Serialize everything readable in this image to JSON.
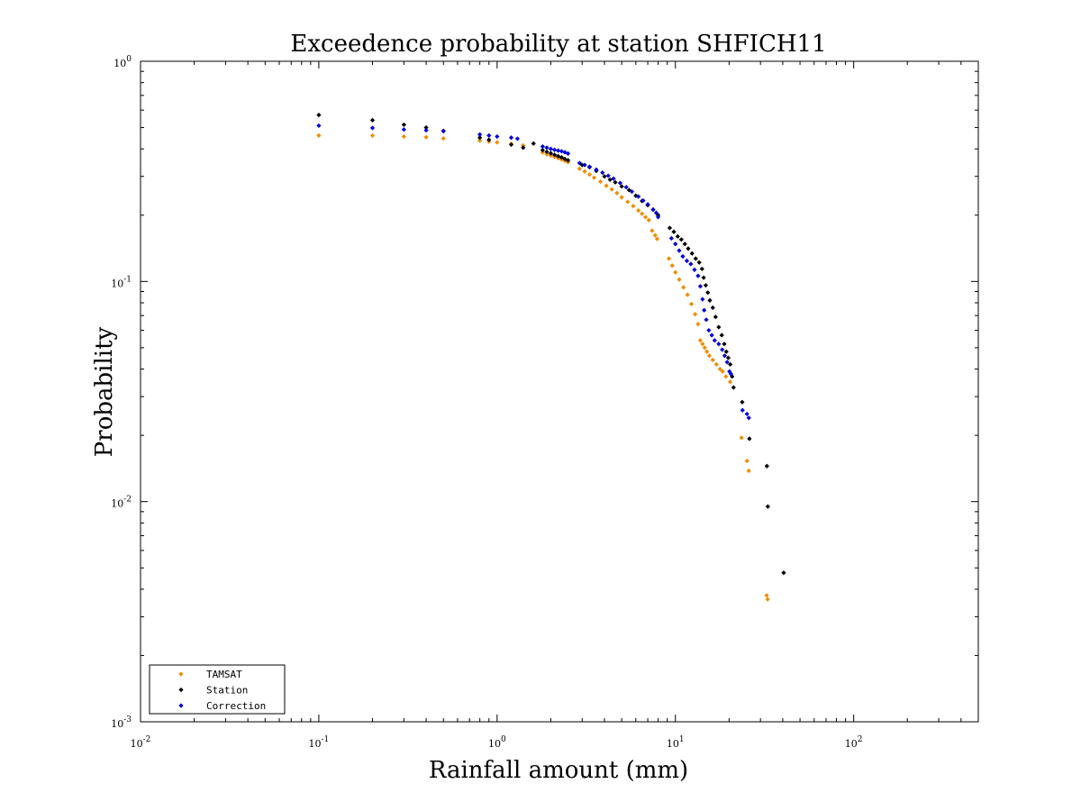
{
  "chart_data": {
    "type": "scatter",
    "title": "Exceedence probability at station SHFICH11",
    "xlabel": "Rainfall amount (mm)",
    "ylabel": "Probability",
    "x_scale": "log",
    "y_scale": "log",
    "xlim": [
      0.01,
      500
    ],
    "ylim": [
      0.001,
      1
    ],
    "x_tick_labels": [
      {
        "value": 0.01,
        "base": "10",
        "exp": "-2"
      },
      {
        "value": 0.1,
        "base": "10",
        "exp": "-1"
      },
      {
        "value": 1,
        "base": "10",
        "exp": "0"
      },
      {
        "value": 10,
        "base": "10",
        "exp": "1"
      },
      {
        "value": 100,
        "base": "10",
        "exp": "2"
      }
    ],
    "y_tick_labels": [
      {
        "value": 1,
        "base": "10",
        "exp": "0"
      },
      {
        "value": 0.1,
        "base": "10",
        "exp": "-1"
      },
      {
        "value": 0.01,
        "base": "10",
        "exp": "-2"
      },
      {
        "value": 0.001,
        "base": "10",
        "exp": "-3"
      }
    ],
    "grid": false,
    "legend_position": "bottom-left",
    "series": [
      {
        "name": "TAMSAT",
        "color": "#f08c00",
        "marker": "diamond",
        "points": [
          [
            0.1,
            0.46
          ],
          [
            0.2,
            0.46
          ],
          [
            0.3,
            0.455
          ],
          [
            0.4,
            0.452
          ],
          [
            0.5,
            0.446
          ],
          [
            0.8,
            0.436
          ],
          [
            0.9,
            0.432
          ],
          [
            1.0,
            0.428
          ],
          [
            1.2,
            0.422
          ],
          [
            1.4,
            0.415
          ],
          [
            1.8,
            0.385
          ],
          [
            1.9,
            0.378
          ],
          [
            2.0,
            0.373
          ],
          [
            2.1,
            0.368
          ],
          [
            2.2,
            0.363
          ],
          [
            2.3,
            0.358
          ],
          [
            2.4,
            0.353
          ],
          [
            2.5,
            0.348
          ],
          [
            2.9,
            0.325
          ],
          [
            3.1,
            0.316
          ],
          [
            3.3,
            0.306
          ],
          [
            3.5,
            0.296
          ],
          [
            3.8,
            0.284
          ],
          [
            4.1,
            0.272
          ],
          [
            4.4,
            0.262
          ],
          [
            4.7,
            0.252
          ],
          [
            5.0,
            0.241
          ],
          [
            5.4,
            0.23
          ],
          [
            5.8,
            0.22
          ],
          [
            6.2,
            0.21
          ],
          [
            6.5,
            0.203
          ],
          [
            6.8,
            0.196
          ],
          [
            7.1,
            0.19
          ],
          [
            7.4,
            0.17
          ],
          [
            7.7,
            0.162
          ],
          [
            7.9,
            0.156
          ],
          [
            9.2,
            0.127
          ],
          [
            9.6,
            0.118
          ],
          [
            10.0,
            0.11
          ],
          [
            10.5,
            0.102
          ],
          [
            11.1,
            0.094
          ],
          [
            11.7,
            0.087
          ],
          [
            12.3,
            0.079
          ],
          [
            12.9,
            0.071
          ],
          [
            13.4,
            0.064
          ],
          [
            13.8,
            0.054
          ],
          [
            14.2,
            0.052
          ],
          [
            14.6,
            0.05
          ],
          [
            15.0,
            0.048
          ],
          [
            15.5,
            0.046
          ],
          [
            16.2,
            0.044
          ],
          [
            17.0,
            0.042
          ],
          [
            17.8,
            0.04
          ],
          [
            18.4,
            0.039
          ],
          [
            19.2,
            0.037
          ],
          [
            20.3,
            0.035
          ],
          [
            23.5,
            0.0195
          ],
          [
            25.2,
            0.0153
          ],
          [
            25.8,
            0.0138
          ],
          [
            32.5,
            0.00375
          ],
          [
            32.9,
            0.0036
          ]
        ]
      },
      {
        "name": "Station",
        "color": "#000000",
        "marker": "diamond",
        "points": [
          [
            0.1,
            0.57
          ],
          [
            0.2,
            0.54
          ],
          [
            0.3,
            0.515
          ],
          [
            0.4,
            0.5
          ],
          [
            0.5,
            0.483
          ],
          [
            0.8,
            0.45
          ],
          [
            0.9,
            0.44
          ],
          [
            1.2,
            0.418
          ],
          [
            1.4,
            0.405
          ],
          [
            1.6,
            0.423
          ],
          [
            1.8,
            0.395
          ],
          [
            1.9,
            0.388
          ],
          [
            2.0,
            0.382
          ],
          [
            2.1,
            0.376
          ],
          [
            2.2,
            0.371
          ],
          [
            2.3,
            0.366
          ],
          [
            2.4,
            0.36
          ],
          [
            2.5,
            0.355
          ],
          [
            3.0,
            0.338
          ],
          [
            3.3,
            0.33
          ],
          [
            3.6,
            0.318
          ],
          [
            4.0,
            0.3
          ],
          [
            4.3,
            0.29
          ],
          [
            4.6,
            0.282
          ],
          [
            5.0,
            0.27
          ],
          [
            5.5,
            0.26
          ],
          [
            6.0,
            0.245
          ],
          [
            6.5,
            0.232
          ],
          [
            7.0,
            0.222
          ],
          [
            7.5,
            0.212
          ],
          [
            8.0,
            0.2
          ],
          [
            9.3,
            0.175
          ],
          [
            9.8,
            0.168
          ],
          [
            10.3,
            0.16
          ],
          [
            10.8,
            0.155
          ],
          [
            11.3,
            0.148
          ],
          [
            11.8,
            0.141
          ],
          [
            12.4,
            0.134
          ],
          [
            13.0,
            0.127
          ],
          [
            13.6,
            0.122
          ],
          [
            14.1,
            0.114
          ],
          [
            14.4,
            0.104
          ],
          [
            14.8,
            0.096
          ],
          [
            15.2,
            0.089
          ],
          [
            15.6,
            0.082
          ],
          [
            16.2,
            0.076
          ],
          [
            16.8,
            0.069
          ],
          [
            17.5,
            0.062
          ],
          [
            18.2,
            0.057
          ],
          [
            18.8,
            0.052
          ],
          [
            19.3,
            0.048
          ],
          [
            19.8,
            0.045
          ],
          [
            20.3,
            0.042
          ],
          [
            20.8,
            0.037
          ],
          [
            21.2,
            0.033
          ],
          [
            23.7,
            0.0283
          ],
          [
            26.0,
            0.0193
          ],
          [
            32.6,
            0.0145
          ],
          [
            33.0,
            0.0095
          ],
          [
            40.5,
            0.00475
          ]
        ]
      },
      {
        "name": "Correction",
        "color": "#0000d8",
        "marker": "diamond",
        "points": [
          [
            0.1,
            0.51
          ],
          [
            0.2,
            0.498
          ],
          [
            0.3,
            0.49
          ],
          [
            0.4,
            0.486
          ],
          [
            0.5,
            0.481
          ],
          [
            0.8,
            0.465
          ],
          [
            0.9,
            0.46
          ],
          [
            1.0,
            0.455
          ],
          [
            1.2,
            0.45
          ],
          [
            1.3,
            0.445
          ],
          [
            1.8,
            0.41
          ],
          [
            1.9,
            0.405
          ],
          [
            2.0,
            0.4
          ],
          [
            2.1,
            0.396
          ],
          [
            2.2,
            0.393
          ],
          [
            2.3,
            0.39
          ],
          [
            2.4,
            0.386
          ],
          [
            2.5,
            0.381
          ],
          [
            2.9,
            0.345
          ],
          [
            3.1,
            0.338
          ],
          [
            3.3,
            0.332
          ],
          [
            3.6,
            0.322
          ],
          [
            3.9,
            0.312
          ],
          [
            4.2,
            0.302
          ],
          [
            4.5,
            0.293
          ],
          [
            4.9,
            0.28
          ],
          [
            5.3,
            0.268
          ],
          [
            5.7,
            0.256
          ],
          [
            6.2,
            0.243
          ],
          [
            6.6,
            0.233
          ],
          [
            7.0,
            0.224
          ],
          [
            7.5,
            0.212
          ],
          [
            7.8,
            0.205
          ],
          [
            8.0,
            0.196
          ],
          [
            9.5,
            0.157
          ],
          [
            10.0,
            0.148
          ],
          [
            10.5,
            0.138
          ],
          [
            11.0,
            0.13
          ],
          [
            11.6,
            0.124
          ],
          [
            12.2,
            0.12
          ],
          [
            12.8,
            0.113
          ],
          [
            13.4,
            0.106
          ],
          [
            13.8,
            0.095
          ],
          [
            14.2,
            0.083
          ],
          [
            14.5,
            0.074
          ],
          [
            14.9,
            0.067
          ],
          [
            15.4,
            0.06
          ],
          [
            16.0,
            0.057
          ],
          [
            16.6,
            0.054
          ],
          [
            17.5,
            0.052
          ],
          [
            18.3,
            0.049
          ],
          [
            18.9,
            0.046
          ],
          [
            19.5,
            0.043
          ],
          [
            20.1,
            0.039
          ],
          [
            20.5,
            0.038
          ],
          [
            23.8,
            0.026
          ],
          [
            25.2,
            0.025
          ],
          [
            25.8,
            0.024
          ]
        ]
      }
    ]
  }
}
